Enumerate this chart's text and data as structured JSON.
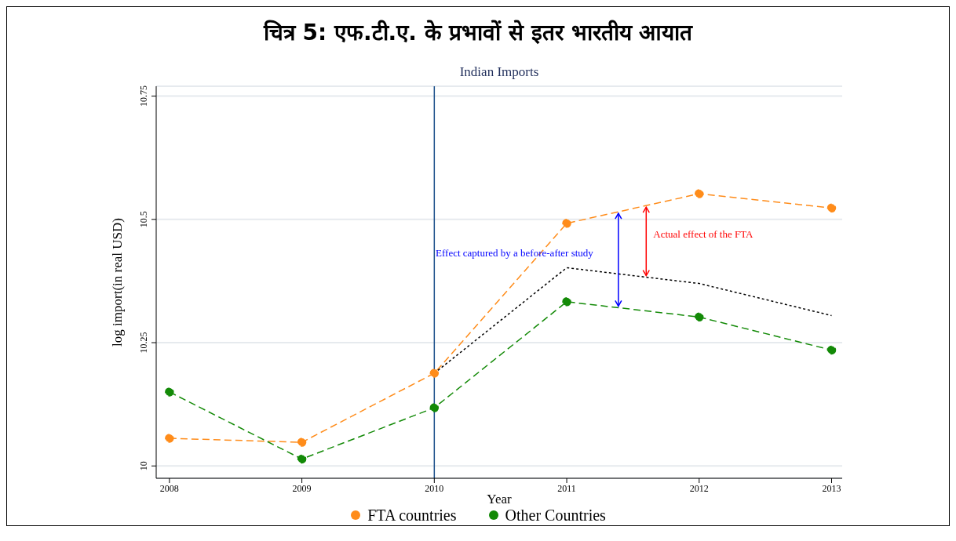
{
  "chart_data": {
    "type": "line",
    "title": "चित्र 5: एफ.टी.ए. के प्रभावों से इतर भारतीय आयात",
    "subtitle": "Indian Imports",
    "xlabel": "Year",
    "ylabel": "log import(in real USD)",
    "x": [
      2008,
      2009,
      2010,
      2011,
      2012,
      2013
    ],
    "series": [
      {
        "name": "FTA countries",
        "color": "#ff8c1a",
        "values": [
          10.056,
          10.048,
          10.188,
          10.492,
          10.552,
          10.523
        ],
        "marker": "circle",
        "line_style": "dashed"
      },
      {
        "name": "Other Countries",
        "color": "#138a07",
        "values": [
          10.15,
          10.014,
          10.118,
          10.333,
          10.302,
          10.235
        ],
        "marker": "circle",
        "line_style": "dashed"
      },
      {
        "color": "#000000",
        "values": [
          null,
          null,
          10.188,
          10.402,
          10.37,
          10.305
        ],
        "marker": "none",
        "line_style": "dotted"
      }
    ],
    "xlim": [
      2007.9,
      2013.08
    ],
    "xticks": [
      2008,
      2009,
      2010,
      2011,
      2012,
      2013
    ],
    "ylim": [
      9.975,
      10.77
    ],
    "yticks": [
      10,
      10.25,
      10.5,
      10.75
    ],
    "ref_lines": [
      {
        "axis": "x",
        "value": 2010,
        "color": "#1a4e8a"
      }
    ],
    "annotations": [
      "Effect captured by a before-after study",
      "Actual effect of the FTA"
    ],
    "grid": "y",
    "legend": "bottom"
  }
}
